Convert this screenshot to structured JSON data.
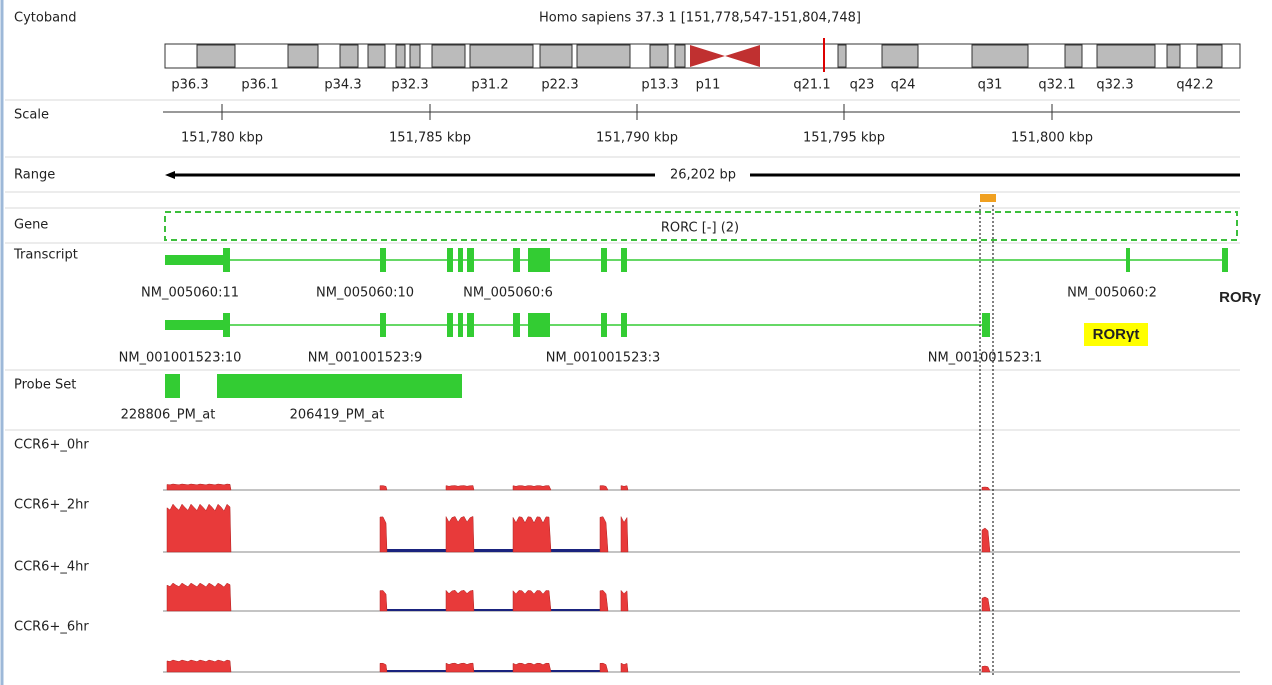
{
  "cytoband": {
    "label": "Cytoband",
    "title": "Homo sapiens 37.3 1 [151,778,547-151,804,748]",
    "bands": [
      "p36.3",
      "p36.1",
      "p34.3",
      "p32.3",
      "p31.2",
      "p22.3",
      "p13.3",
      "p11",
      "q21.1",
      "q23",
      "q24",
      "q31",
      "q32.1",
      "q32.3",
      "q42.2"
    ]
  },
  "scale": {
    "label": "Scale",
    "ticks": [
      "151,780 kbp",
      "151,785 kbp",
      "151,790 kbp",
      "151,795 kbp",
      "151,800 kbp"
    ]
  },
  "range": {
    "label": "Range",
    "span": "26,202 bp"
  },
  "gene": {
    "label": "Gene",
    "name": "RORC [-] (2)"
  },
  "transcript": {
    "label": "Transcript",
    "exons_a": [
      "NM_005060:11",
      "NM_005060:10",
      "NM_005060:6",
      "NM_005060:2"
    ],
    "exons_b": [
      "NM_001001523:10",
      "NM_001001523:9",
      "NM_001001523:3",
      "NM_001001523:1"
    ],
    "isoform_a": "RORγ",
    "isoform_b": "RORγt"
  },
  "probe_set": {
    "label": "Probe Set",
    "probes": [
      "228806_PM_at",
      "206419_PM_at"
    ]
  },
  "coverage": {
    "tracks": [
      "CCR6+_0hr",
      "CCR6+_2hr",
      "CCR6+_4hr",
      "CCR6+_6hr"
    ]
  }
}
